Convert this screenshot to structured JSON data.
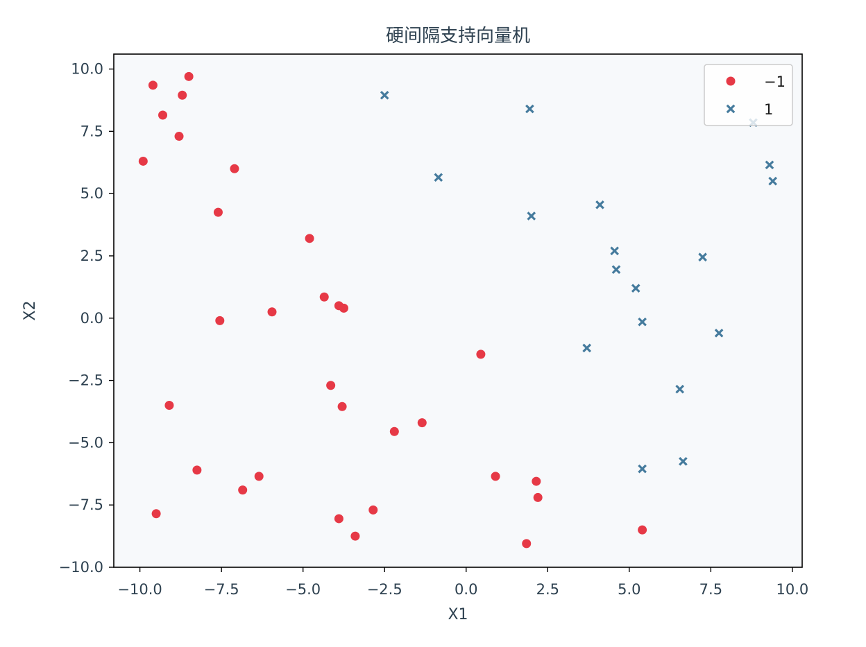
{
  "chart_data": {
    "type": "scatter",
    "title": "硬间隔支持向量机",
    "xlabel": "X1",
    "ylabel": "X2",
    "xlim": [
      -10.8,
      10.3
    ],
    "ylim": [
      -10.0,
      10.6
    ],
    "xticks": [
      -10.0,
      -7.5,
      -5.0,
      -2.5,
      0.0,
      2.5,
      5.0,
      7.5,
      10.0
    ],
    "xtick_labels": [
      "−10.0",
      "−7.5",
      "−5.0",
      "−2.5",
      "0.0",
      "2.5",
      "5.0",
      "7.5",
      "10.0"
    ],
    "yticks": [
      -10.0,
      -7.5,
      -5.0,
      -2.5,
      0.0,
      2.5,
      5.0,
      7.5,
      10.0
    ],
    "ytick_labels": [
      "−10.0",
      "−7.5",
      "−5.0",
      "−2.5",
      "0.0",
      "2.5",
      "5.0",
      "7.5",
      "10.0"
    ],
    "grid": false,
    "legend_position": "top-right",
    "plot_background": "#f7f9fb",
    "series": [
      {
        "name": "−1",
        "marker": "circle",
        "color": "#e63946",
        "points": [
          [
            -9.6,
            9.35
          ],
          [
            -8.5,
            9.7
          ],
          [
            -8.7,
            8.95
          ],
          [
            -9.3,
            8.15
          ],
          [
            -8.8,
            7.3
          ],
          [
            -9.9,
            6.3
          ],
          [
            -7.1,
            6.0
          ],
          [
            -7.6,
            4.25
          ],
          [
            -4.8,
            3.2
          ],
          [
            -4.35,
            0.85
          ],
          [
            -3.9,
            0.5
          ],
          [
            -3.75,
            0.4
          ],
          [
            -5.95,
            0.25
          ],
          [
            -7.55,
            -0.1
          ],
          [
            0.45,
            -1.45
          ],
          [
            -4.15,
            -2.7
          ],
          [
            -3.8,
            -3.55
          ],
          [
            -9.1,
            -3.5
          ],
          [
            -1.35,
            -4.2
          ],
          [
            -2.2,
            -4.55
          ],
          [
            -8.25,
            -6.1
          ],
          [
            -6.35,
            -6.35
          ],
          [
            -6.85,
            -6.9
          ],
          [
            0.9,
            -6.35
          ],
          [
            2.15,
            -6.55
          ],
          [
            2.2,
            -7.2
          ],
          [
            -2.85,
            -7.7
          ],
          [
            -9.5,
            -7.85
          ],
          [
            -3.9,
            -8.05
          ],
          [
            -3.4,
            -8.75
          ],
          [
            1.85,
            -9.05
          ],
          [
            5.4,
            -8.5
          ]
        ]
      },
      {
        "name": "1",
        "marker": "x",
        "color": "#457b9d",
        "points": [
          [
            -2.5,
            8.95
          ],
          [
            1.95,
            8.4
          ],
          [
            8.8,
            7.85
          ],
          [
            9.3,
            6.15
          ],
          [
            9.4,
            5.5
          ],
          [
            -0.85,
            5.65
          ],
          [
            4.1,
            4.55
          ],
          [
            2.0,
            4.1
          ],
          [
            4.55,
            2.7
          ],
          [
            4.6,
            1.95
          ],
          [
            7.25,
            2.45
          ],
          [
            5.2,
            1.2
          ],
          [
            5.4,
            -0.15
          ],
          [
            7.75,
            -0.6
          ],
          [
            3.7,
            -1.2
          ],
          [
            6.55,
            -2.85
          ],
          [
            6.65,
            -5.75
          ],
          [
            5.4,
            -6.05
          ]
        ]
      }
    ]
  }
}
